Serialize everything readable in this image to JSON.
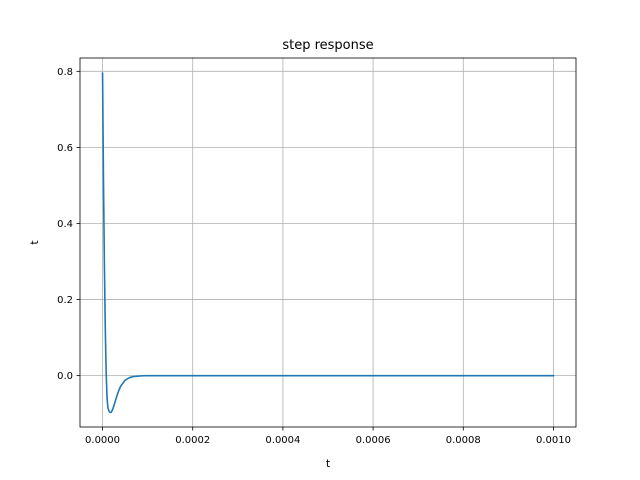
{
  "chart_data": {
    "type": "line",
    "title": "step response",
    "xlabel": "t",
    "ylabel": "t",
    "xlim": [
      -5e-05,
      0.00105
    ],
    "ylim": [
      -0.135,
      0.835
    ],
    "grid": true,
    "x_ticks": [
      0.0,
      0.0002,
      0.0004,
      0.0006,
      0.0008,
      0.001
    ],
    "x_tick_labels": [
      "0.0000",
      "0.0002",
      "0.0004",
      "0.0006",
      "0.0008",
      "0.0010"
    ],
    "y_ticks": [
      0.0,
      0.2,
      0.4,
      0.6,
      0.8
    ],
    "y_tick_labels": [
      "0.0",
      "0.2",
      "0.4",
      "0.6",
      "0.8"
    ],
    "colors": {
      "line": "#1f77b4",
      "grid": "#b0b0b0",
      "axes": "#000000"
    },
    "series": [
      {
        "x": [
          0.0,
          2e-06,
          4e-06,
          6e-06,
          8e-06,
          1e-05,
          1.2e-05,
          1.5e-05,
          1.8e-05,
          2e-05,
          2.2e-05,
          2.5e-05,
          3e-05,
          3.5e-05,
          4e-05,
          5e-05,
          6e-05,
          7e-05,
          8e-05,
          9e-05,
          0.0001,
          0.00011,
          0.00012,
          0.00015,
          0.0002,
          0.0003,
          0.0004,
          0.0005,
          0.0006,
          0.0007,
          0.0008,
          0.0009,
          0.001
        ],
        "values": [
          0.795,
          0.52,
          0.3,
          0.13,
          0.01,
          -0.06,
          -0.085,
          -0.095,
          -0.097,
          -0.095,
          -0.09,
          -0.08,
          -0.06,
          -0.042,
          -0.028,
          -0.012,
          -0.005,
          -0.002,
          -0.001,
          -0.0003,
          0.0,
          0.0,
          0.0,
          0.0,
          0.0,
          0.0,
          0.0,
          0.0,
          0.0,
          0.0,
          0.0,
          0.0,
          0.0
        ]
      }
    ]
  }
}
